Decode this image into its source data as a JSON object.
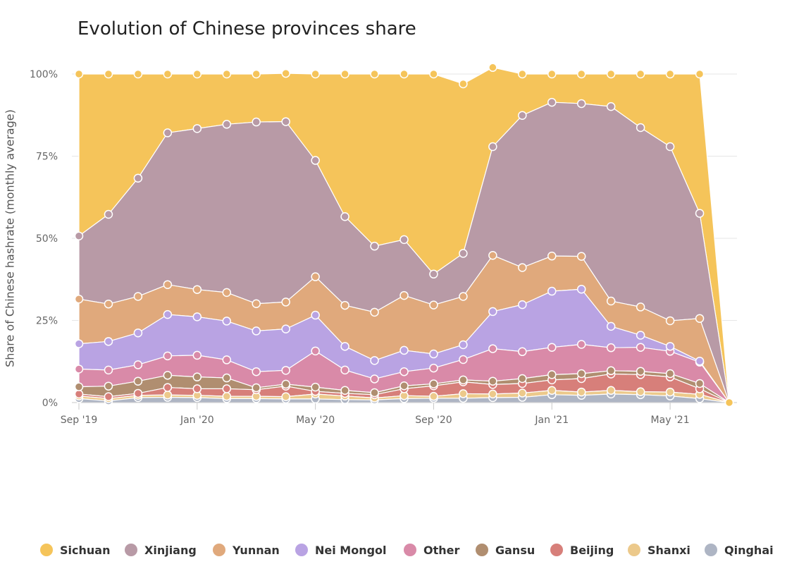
{
  "chart_data": {
    "type": "area",
    "stacking": "percent",
    "title": "Evolution of Chinese provinces share",
    "ylabel": "Share of Chinese hashrate (monthly average)",
    "xlabel": "",
    "x": [
      "2019-09",
      "2019-10",
      "2019-11",
      "2019-12",
      "2020-01",
      "2020-02",
      "2020-03",
      "2020-04",
      "2020-05",
      "2020-06",
      "2020-07",
      "2020-08",
      "2020-09",
      "2020-10",
      "2020-11",
      "2020-12",
      "2021-01",
      "2021-02",
      "2021-03",
      "2021-04",
      "2021-05",
      "2021-06",
      "2021-07"
    ],
    "x_tick_labels": [
      "Sep '19",
      "Jan '20",
      "May '20",
      "Sep '20",
      "Jan '21",
      "May '21"
    ],
    "y_tick_labels": [
      "0%",
      "25%",
      "50%",
      "75%",
      "100%"
    ],
    "ylim": [
      0,
      100
    ],
    "grid": true,
    "legend_position": "bottom",
    "series": [
      {
        "name": "Sichuan",
        "color": "#f5c45a",
        "values": [
          49.3,
          42.7,
          31.7,
          17.9,
          16.6,
          15.3,
          14.6,
          14.7,
          26.3,
          43.4,
          52.4,
          50.4,
          60.9,
          51.6,
          24.1,
          12.6,
          8.6,
          9.0,
          9.9,
          16.3,
          22.1,
          42.4,
          0
        ]
      },
      {
        "name": "Xinjiang",
        "color": "#b89aa6",
        "values": [
          19.2,
          27.3,
          36.0,
          46.2,
          49.0,
          51.2,
          55.3,
          54.9,
          35.4,
          27.0,
          20.1,
          17.0,
          9.4,
          13.1,
          33.1,
          46.3,
          46.8,
          46.5,
          59.2,
          54.6,
          53.0,
          32.0,
          0
        ]
      },
      {
        "name": "Yunnan",
        "color": "#e0a97c",
        "values": [
          13.6,
          11.4,
          11.1,
          9.1,
          8.3,
          8.7,
          8.3,
          8.2,
          11.7,
          12.5,
          14.7,
          16.7,
          14.9,
          14.7,
          17.1,
          11.3,
          10.7,
          10.0,
          7.7,
          8.6,
          7.8,
          13.0,
          0
        ]
      },
      {
        "name": "Nei Mongol",
        "color": "#b9a3e3",
        "values": [
          7.7,
          8.7,
          9.7,
          12.6,
          11.7,
          11.8,
          12.4,
          12.6,
          10.9,
          7.2,
          5.6,
          6.5,
          4.3,
          4.5,
          11.3,
          14.3,
          17.1,
          16.8,
          6.5,
          3.7,
          1.5,
          0.3,
          0
        ]
      },
      {
        "name": "Other",
        "color": "#d98aa8",
        "values": [
          5.4,
          4.9,
          5.0,
          5.9,
          6.6,
          5.5,
          4.9,
          4.2,
          11.0,
          6.2,
          4.2,
          4.3,
          4.8,
          6.2,
          9.9,
          8.2,
          8.3,
          8.9,
          7.0,
          7.3,
          6.8,
          6.5,
          0
        ]
      },
      {
        "name": "Gansu",
        "color": "#b08e70",
        "values": [
          2.2,
          3.2,
          3.7,
          3.7,
          3.6,
          3.3,
          0.6,
          0.6,
          1.3,
          0.9,
          0.6,
          0.9,
          0.6,
          0.6,
          1.0,
          1.5,
          1.6,
          1.5,
          1.0,
          1.0,
          1.0,
          1.6,
          0
        ]
      },
      {
        "name": "Beijing",
        "color": "#d77f7a",
        "values": [
          0.6,
          0.6,
          0.6,
          2.3,
          2.0,
          2.3,
          2.0,
          3.2,
          0.8,
          0.8,
          1.0,
          2.1,
          3.2,
          3.6,
          2.9,
          2.9,
          3.2,
          4.1,
          5.0,
          5.2,
          4.6,
          1.7,
          0
        ]
      },
      {
        "name": "Shanxi",
        "color": "#ecc98b",
        "values": [
          0.8,
          0.7,
          0.7,
          0.7,
          0.7,
          0.7,
          0.7,
          0.7,
          1.5,
          1.1,
          0.6,
          0.9,
          0.6,
          1.4,
          1.1,
          1.3,
          1.3,
          1.0,
          1.1,
          0.9,
          1.2,
          1.3,
          0
        ]
      },
      {
        "name": "Qinghai",
        "color": "#aeb5c4",
        "values": [
          1.2,
          0.5,
          1.5,
          1.6,
          1.5,
          1.2,
          1.2,
          1.1,
          1.1,
          0.9,
          0.8,
          1.2,
          1.3,
          1.3,
          1.5,
          1.6,
          2.4,
          2.2,
          2.6,
          2.4,
          2.0,
          1.2,
          0
        ]
      }
    ]
  }
}
